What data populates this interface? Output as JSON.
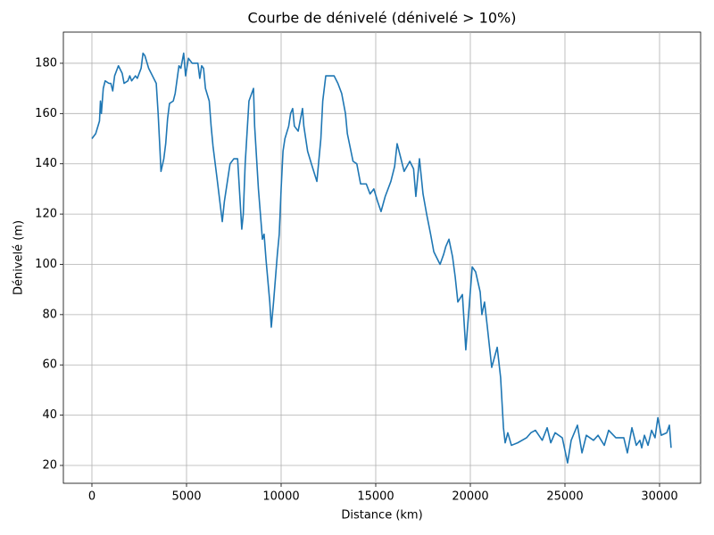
{
  "chart_data": {
    "type": "line",
    "title": "Courbe de dénivelé (dénivelé > 10%)",
    "xlabel": "Distance (km)",
    "ylabel": "Dénivelé (m)",
    "xlim": [
      -1509,
      32170
    ],
    "ylim": [
      12.9,
      192.4
    ],
    "xticks": [
      0,
      5000,
      10000,
      15000,
      20000,
      25000,
      30000
    ],
    "yticks": [
      20,
      40,
      60,
      80,
      100,
      120,
      140,
      160,
      180
    ],
    "grid": true,
    "x": [
      0,
      200,
      400,
      450,
      500,
      600,
      700,
      900,
      1000,
      1100,
      1200,
      1400,
      1600,
      1700,
      1900,
      2000,
      2100,
      2300,
      2400,
      2600,
      2700,
      2800,
      3000,
      3200,
      3400,
      3500,
      3600,
      3650,
      3800,
      3900,
      4000,
      4100,
      4300,
      4400,
      4600,
      4700,
      4850,
      4950,
      5100,
      5300,
      5600,
      5700,
      5800,
      5900,
      6000,
      6200,
      6300,
      6400,
      6600,
      6890,
      7000,
      7200,
      7300,
      7500,
      7700,
      7920,
      8000,
      8100,
      8300,
      8540,
      8600,
      8800,
      9010,
      9100,
      9200,
      9400,
      9480,
      9600,
      9800,
      9900,
      10000,
      10100,
      10200,
      10400,
      10500,
      10610,
      10700,
      10900,
      11130,
      11200,
      11400,
      11600,
      11890,
      12100,
      12200,
      12360,
      12800,
      13000,
      13200,
      13400,
      13500,
      13800,
      14000,
      14200,
      14500,
      14700,
      14900,
      15100,
      15280,
      15500,
      15800,
      16000,
      16130,
      16300,
      16500,
      16800,
      17000,
      17120,
      17310,
      17500,
      17690,
      17900,
      18070,
      18200,
      18400,
      18590,
      18700,
      18870,
      19060,
      19200,
      19340,
      19580,
      19760,
      20100,
      20280,
      20520,
      20610,
      20750,
      20900,
      21130,
      21420,
      21600,
      21750,
      21840,
      21980,
      22170,
      22500,
      22970,
      23200,
      23440,
      23800,
      24060,
      24250,
      24480,
      24860,
      25140,
      25330,
      25660,
      25900,
      26130,
      26510,
      26750,
      27080,
      27310,
      27690,
      28110,
      28300,
      28540,
      28770,
      28960,
      29060,
      29200,
      29390,
      29580,
      29760,
      29910,
      30090,
      30380,
      30520,
      30610
    ],
    "series": [
      {
        "name": "Dénivelé",
        "color": "#1f77b4",
        "values": [
          150,
          152,
          157,
          165,
          160,
          170,
          173,
          172,
          172,
          169,
          175,
          179,
          176,
          172,
          173,
          175,
          173,
          175,
          174,
          178,
          184,
          183,
          178,
          175,
          172,
          160,
          145,
          137,
          142,
          148,
          158,
          164,
          165,
          168,
          179,
          178,
          184,
          175,
          182,
          180,
          180,
          174,
          179,
          178,
          170,
          165,
          155,
          147,
          135,
          117,
          125,
          135,
          140,
          142,
          142,
          114,
          120,
          140,
          165,
          170,
          155,
          130,
          110,
          112,
          102,
          85,
          75,
          85,
          104,
          112,
          130,
          145,
          150,
          155,
          160,
          162,
          155,
          153,
          162,
          155,
          145,
          140,
          133,
          150,
          165,
          175,
          175,
          172,
          168,
          160,
          152,
          141,
          140,
          132,
          132,
          128,
          130,
          125,
          121,
          127,
          133,
          139,
          148,
          143,
          137,
          141,
          138,
          127,
          142,
          128,
          120,
          112,
          105,
          103,
          100,
          104,
          107,
          110,
          103,
          95,
          85,
          88,
          66,
          99,
          97,
          89,
          80,
          85,
          75,
          59,
          67,
          55,
          35,
          29,
          33,
          28,
          29,
          31,
          33,
          34,
          30,
          35,
          29,
          33,
          31,
          21,
          30,
          36,
          25,
          32,
          30,
          32,
          28,
          34,
          31,
          31,
          25,
          35,
          28,
          30,
          27,
          32,
          28,
          34,
          31,
          39,
          32,
          33,
          36,
          27
        ]
      }
    ]
  }
}
